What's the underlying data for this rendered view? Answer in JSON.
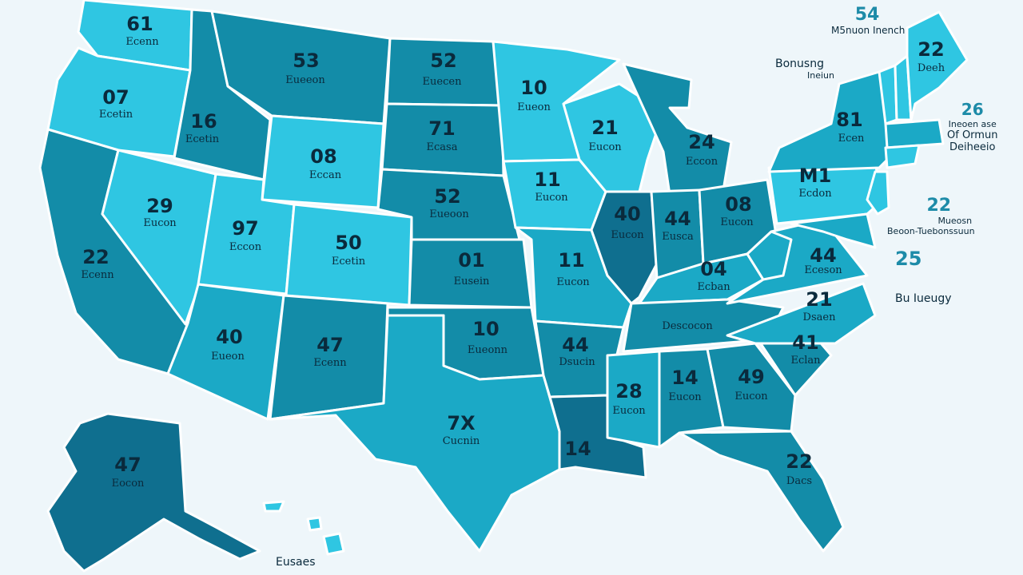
{
  "colors": {
    "background": "#eef6fa",
    "light": "#2fc6e2",
    "medium": "#1ba9c6",
    "dark": "#138ca8",
    "darkest": "#0f6f8f",
    "text": "#0a2a3c",
    "side_text": "#1d8ba8"
  },
  "states": [
    {
      "num": "61",
      "label": "Ecenn"
    },
    {
      "num": "07",
      "label": "Ecetin"
    },
    {
      "num": "29",
      "label": "Eucon"
    },
    {
      "num": "22",
      "label": "Ecenn"
    },
    {
      "num": "16",
      "label": "Ecetin"
    },
    {
      "num": "53",
      "label": "Eueeon"
    },
    {
      "num": "08",
      "label": "Eccan"
    },
    {
      "num": "97",
      "label": "Eccon"
    },
    {
      "num": "50",
      "label": "Ecetin"
    },
    {
      "num": "40",
      "label": "Eueon"
    },
    {
      "num": "47",
      "label": "Ecenn"
    },
    {
      "num": "52",
      "label": "Euecen"
    },
    {
      "num": "71",
      "label": "Ecasa"
    },
    {
      "num": "52",
      "label": "Eueoon"
    },
    {
      "num": "01",
      "label": "Eusein"
    },
    {
      "num": "10",
      "label": "Eueonn"
    },
    {
      "num": "10",
      "label": "Eueon"
    },
    {
      "num": "7X",
      "label": "Cucnin"
    },
    {
      "num": "11",
      "label": "Eucon"
    },
    {
      "num": "11",
      "label": "Eucon"
    },
    {
      "num": "44",
      "label": "Dsucin"
    },
    {
      "num": "14",
      "label": ""
    },
    {
      "num": "21",
      "label": "Eucon"
    },
    {
      "num": "40",
      "label": "Eucon"
    },
    {
      "num": "44",
      "label": "Eusca"
    },
    {
      "num": "08",
      "label": "Eucon"
    },
    {
      "num": "24",
      "label": "Eccon"
    },
    {
      "num": "28",
      "label": "Eucon"
    },
    {
      "num": "14",
      "label": "Eucon"
    },
    {
      "num": "49",
      "label": "Eucon"
    },
    {
      "num": "22",
      "label": "Dacs"
    },
    {
      "num": "04",
      "label": "Ecban"
    },
    {
      "num": "",
      "label": "Descocon"
    },
    {
      "num": "44",
      "label": "Eceson"
    },
    {
      "num": "21",
      "label": "Dsaen"
    },
    {
      "num": "41",
      "label": "Eclan"
    },
    {
      "num": "81",
      "label": "Ecen"
    },
    {
      "num": "M1",
      "label": "Ecdon"
    },
    {
      "num": "22",
      "label": "Deeh"
    },
    {
      "num": "47",
      "label": "Eocon"
    }
  ],
  "side_labels": {
    "top_number": "54",
    "top_line1": "M5nuon Inench",
    "top_line2": "Bonusng",
    "top_line3": "Ineiun",
    "right1_number": "26",
    "right1_line1": "Ineoen ase",
    "right1_line2": "Of Ormun",
    "right1_line3": "Deiheeio",
    "right2_number": "22",
    "right2_line1": "Mueosn",
    "right2_line2": "Beoon-Tuebonssuun",
    "right3_number": "25",
    "right3_line1": "Bu Iueugy",
    "bottom": "Eusaes"
  }
}
